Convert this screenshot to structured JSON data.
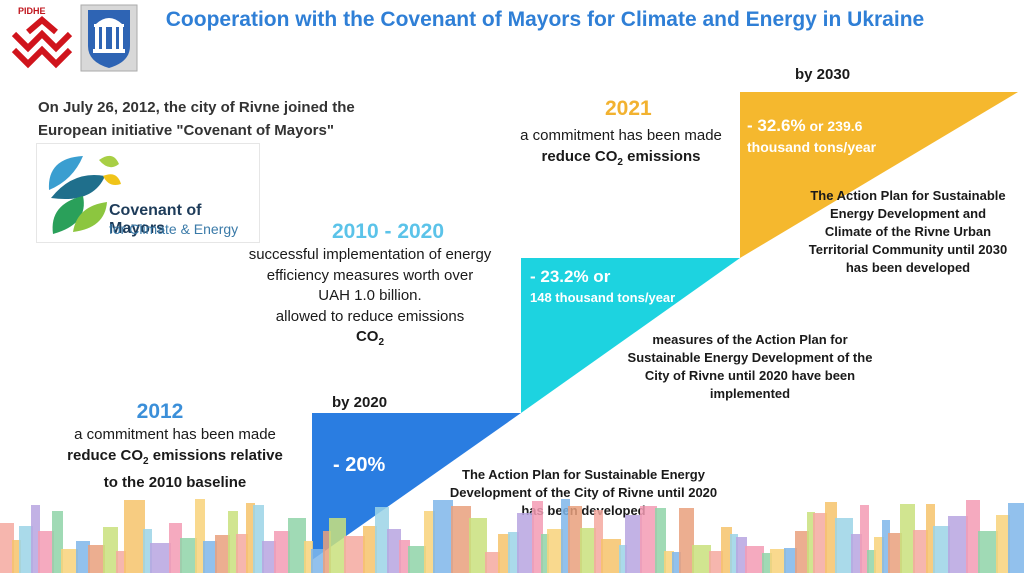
{
  "header": {
    "title": "Cooperation with the Covenant of Mayors for Climate and Energy in Ukraine",
    "logo_rivne_text": "РІВНЕ"
  },
  "intro": {
    "joined_text": "On July 26, 2012, the city of Rivne joined the European initiative \"Covenant of Mayors\""
  },
  "com_logo": {
    "line1": "Covenant of Mayors",
    "line2": "for Climate & Energy"
  },
  "steps": {
    "s2012": {
      "year": "2012",
      "line1": "a commitment has been made",
      "line2_pre": "reduce CO",
      "line2_sub": "2",
      "line2_post": " emissions relative",
      "line3": "to the 2010 baseline"
    },
    "s2020": {
      "label": "by 2020",
      "value": "- 20%",
      "note": "The Action Plan for Sustainable Energy Development of the City of Rivne until 2020 has been developed"
    },
    "s2010_2020": {
      "year": "2010 - 2020",
      "line1": "successful implementation of energy",
      "line2": "efficiency measures worth over",
      "line3": "UAH 1.0 billion.",
      "line4": "allowed to reduce emissions",
      "line5_pre": "CO",
      "line5_sub": "2",
      "value1": "- 23.2% or",
      "value2": "148 thousand tons/year",
      "note": "measures of the Action Plan for Sustainable Energy Development of the City of Rivne until 2020 have been implemented"
    },
    "s2021": {
      "year": "2021",
      "line1": "a commitment has been made",
      "line2_pre": "reduce CO",
      "line2_sub": "2",
      "line2_post": " emissions"
    },
    "s2030": {
      "label": "by 2030",
      "value_main": "- 32.6%",
      "value_or": " or 239.6",
      "value_line2": "thousand tons/year",
      "note": "The Action Plan for Sustainable Energy Development and Climate of the Rivne Urban Territorial Community until 2030 has been developed"
    }
  },
  "colors": {
    "title_blue": "#2f7fd6",
    "year_2012": "#3b8fd9",
    "year_2010_2020": "#5bc3e9",
    "year_2021": "#f2b230",
    "block_blue": "#2a7de1",
    "block_cyan": "#1dd3e0",
    "block_yellow": "#f5b82e"
  }
}
